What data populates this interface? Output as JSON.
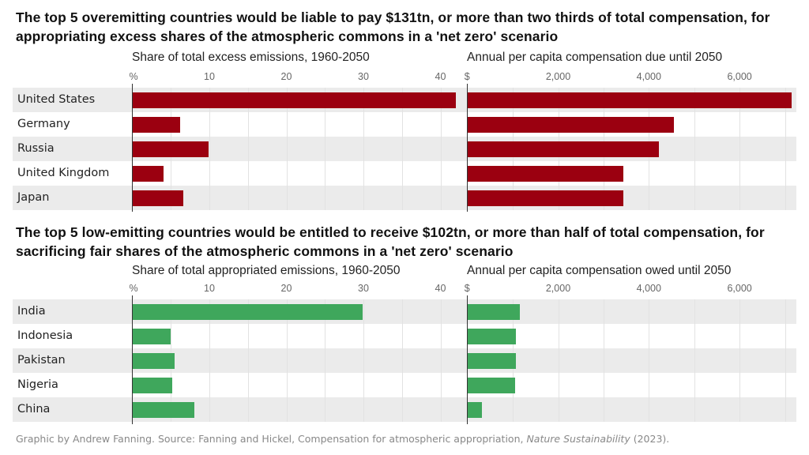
{
  "footer": {
    "prefix": "Graphic by Andrew Fanning. Source: Fanning and Hickel, Compensation for atmospheric appropriation, ",
    "journal": "Nature Sustainability",
    "suffix": " (2023)."
  },
  "colors": {
    "overemitting": "#9b0010",
    "low_emitting": "#3fa75c",
    "band": "#ebebeb",
    "grid": "#e2e2e2"
  },
  "chart_data": [
    {
      "type": "bar",
      "orientation": "horizontal",
      "title": "The top 5 overemitting countries would be liable to pay $131tn, or more than two thirds of total compensation, for appropriating excess shares of the atmospheric commons in a 'net zero' scenario",
      "categories": [
        "United States",
        "Germany",
        "Russia",
        "United Kingdom",
        "Japan"
      ],
      "panels": [
        {
          "subtitle": "Share of total excess emissions, 1960-2050",
          "unit_label": "%",
          "ticks": [
            10,
            20,
            30,
            40
          ],
          "tick_labels": [
            "10",
            "20",
            "30",
            "40"
          ],
          "xlim": [
            0,
            43
          ],
          "grid_step": 5,
          "values": [
            42.0,
            6.2,
            9.9,
            4.1,
            6.6
          ]
        },
        {
          "subtitle": "Annual per capita compensation due until 2050",
          "unit_label": "$",
          "ticks": [
            2000,
            4000,
            6000
          ],
          "tick_labels": [
            "2,000",
            "4,000",
            "6,000"
          ],
          "xlim": [
            0,
            7300
          ],
          "grid_step": 1000,
          "values": [
            7150,
            4550,
            4220,
            3440,
            3430
          ]
        }
      ]
    },
    {
      "type": "bar",
      "orientation": "horizontal",
      "title": "The top 5 low-emitting countries would be entitled to receive $102tn, or more than half of total compensation, for sacrificing fair shares of the atmospheric commons in a 'net zero' scenario",
      "categories": [
        "India",
        "Indonesia",
        "Pakistan",
        "Nigeria",
        "China"
      ],
      "panels": [
        {
          "subtitle": "Share of total appropriated emissions, 1960-2050",
          "unit_label": "%",
          "ticks": [
            10,
            20,
            30,
            40
          ],
          "tick_labels": [
            "10",
            "20",
            "30",
            "40"
          ],
          "xlim": [
            0,
            43
          ],
          "grid_step": 5,
          "values": [
            29.9,
            5.0,
            5.5,
            5.2,
            8.0
          ]
        },
        {
          "subtitle": "Annual per capita compensation owed until 2050",
          "unit_label": "$",
          "ticks": [
            2000,
            4000,
            6000
          ],
          "tick_labels": [
            "2,000",
            "4,000",
            "6,000"
          ],
          "xlim": [
            0,
            7300
          ],
          "grid_step": 1000,
          "values": [
            1160,
            1070,
            1070,
            1045,
            320
          ]
        }
      ]
    }
  ]
}
